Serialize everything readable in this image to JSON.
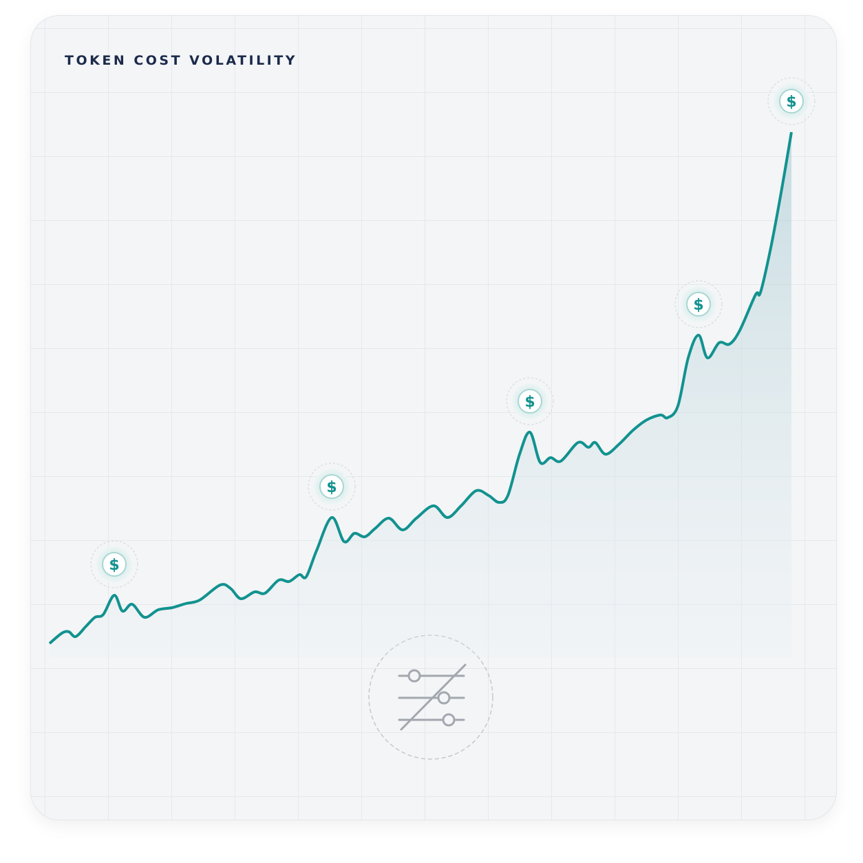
{
  "chart_data": {
    "type": "line",
    "title": "TOKEN COST VOLATILITY",
    "x": [
      0,
      18,
      28,
      38,
      53,
      66,
      78,
      94,
      106,
      120,
      138,
      158,
      178,
      198,
      218,
      248,
      263,
      278,
      298,
      313,
      333,
      348,
      363,
      373,
      388,
      410,
      428,
      443,
      458,
      473,
      493,
      513,
      533,
      558,
      578,
      598,
      620,
      638,
      653,
      666,
      683,
      698,
      713,
      728,
      743,
      768,
      783,
      793,
      808,
      828,
      848,
      868,
      888,
      898,
      913,
      928,
      943,
      956,
      973,
      988,
      1003,
      1026,
      1033,
      1048,
      1063,
      1078
    ],
    "series": [
      {
        "color": "#12928f",
        "values": [
          65,
          80,
          82,
          75,
          90,
          103,
          107,
          135,
          112,
          122,
          103,
          114,
          117,
          123,
          128,
          150,
          145,
          130,
          140,
          138,
          157,
          155,
          165,
          162,
          200,
          248,
          213,
          225,
          220,
          232,
          247,
          230,
          247,
          265,
          248,
          265,
          287,
          280,
          270,
          280,
          340,
          372,
          328,
          335,
          330,
          357,
          350,
          357,
          340,
          355,
          375,
          390,
          397,
          393,
          410,
          480,
          513,
          480,
          502,
          500,
          520,
          572,
          575,
          640,
          720,
          808
        ]
      }
    ],
    "xlim": [
      0,
      1080
    ],
    "ylim": [
      0,
      850
    ],
    "annotations": [
      {
        "text": "$",
        "x": 94
      },
      {
        "text": "$",
        "x": 410
      },
      {
        "text": "$",
        "x": 698
      },
      {
        "text": "$",
        "x": 943
      },
      {
        "text": "$",
        "x": 1078
      }
    ]
  }
}
